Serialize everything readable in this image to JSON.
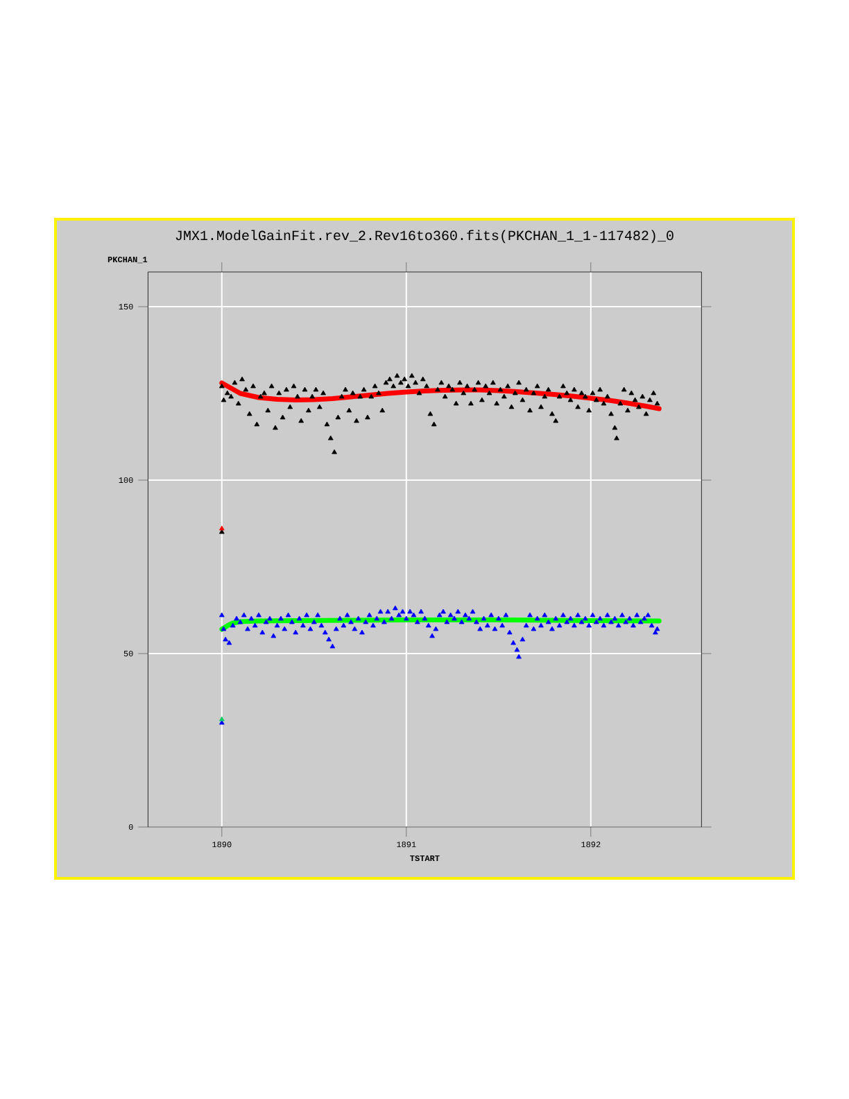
{
  "chart_data": {
    "type": "scatter",
    "title": "JMX1.ModelGainFit.rev_2.Rev16to360.fits(PKCHAN_1_1-117482)_0",
    "xlabel": "TSTART",
    "ylabel": "PKCHAN_1",
    "xlim": [
      1889.6,
      1892.6
    ],
    "ylim": [
      0,
      160
    ],
    "xticks": [
      1890,
      1891,
      1892
    ],
    "yticks": [
      0,
      50,
      100,
      150
    ],
    "grid": true,
    "marker": "triangle",
    "series": [
      {
        "color": "#000000",
        "x": [
          1890.0,
          1890.01,
          1890.03,
          1890.05,
          1890.07,
          1890.09,
          1890.11,
          1890.13,
          1890.15,
          1890.17,
          1890.19,
          1890.21,
          1890.23,
          1890.25,
          1890.27,
          1890.29,
          1890.31,
          1890.33,
          1890.35,
          1890.37,
          1890.39,
          1890.41,
          1890.43,
          1890.45,
          1890.47,
          1890.49,
          1890.51,
          1890.53,
          1890.55,
          1890.57,
          1890.59,
          1890.61,
          1890.63,
          1890.65,
          1890.67,
          1890.69,
          1890.71,
          1890.73,
          1890.75,
          1890.77,
          1890.79,
          1890.81,
          1890.83,
          1890.85,
          1890.87,
          1890.89,
          1890.91,
          1890.93,
          1890.95,
          1890.97,
          1890.99,
          1891.01,
          1891.03,
          1891.05,
          1891.07,
          1891.09,
          1891.11,
          1891.13,
          1891.15,
          1891.17,
          1891.19,
          1891.21,
          1891.23,
          1891.25,
          1891.27,
          1891.29,
          1891.31,
          1891.33,
          1891.35,
          1891.37,
          1891.39,
          1891.41,
          1891.43,
          1891.45,
          1891.47,
          1891.49,
          1891.51,
          1891.53,
          1891.55,
          1891.57,
          1891.59,
          1891.61,
          1891.63,
          1891.65,
          1891.67,
          1891.69,
          1891.71,
          1891.73,
          1891.75,
          1891.77,
          1891.79,
          1891.81,
          1891.83,
          1891.85,
          1891.87,
          1891.89,
          1891.91,
          1891.93,
          1891.95,
          1891.97,
          1891.99,
          1892.01,
          1892.03,
          1892.05,
          1892.07,
          1892.09,
          1892.11,
          1892.13,
          1892.14,
          1892.16,
          1892.18,
          1892.2,
          1892.22,
          1892.24,
          1892.26,
          1892.28,
          1892.3,
          1892.32,
          1892.34,
          1892.36,
          1890.0
        ],
        "values": [
          127,
          123,
          125,
          124,
          128,
          122,
          129,
          126,
          119,
          127,
          116,
          124,
          125,
          120,
          127,
          115,
          125,
          118,
          126,
          121,
          127,
          124,
          117,
          126,
          120,
          124,
          126,
          121,
          125,
          116,
          112,
          108,
          118,
          124,
          126,
          120,
          125,
          117,
          124,
          126,
          118,
          124,
          127,
          125,
          120,
          128,
          129,
          127,
          130,
          128,
          129,
          127,
          130,
          128,
          125,
          129,
          127,
          119,
          116,
          126,
          128,
          124,
          127,
          126,
          122,
          128,
          125,
          127,
          122,
          126,
          128,
          123,
          127,
          125,
          128,
          122,
          126,
          124,
          127,
          121,
          125,
          128,
          123,
          126,
          120,
          125,
          127,
          121,
          124,
          126,
          119,
          117,
          124,
          127,
          125,
          123,
          126,
          121,
          125,
          124,
          120,
          125,
          123,
          126,
          122,
          124,
          119,
          115,
          112,
          122,
          126,
          120,
          125,
          123,
          121,
          124,
          119,
          123,
          125,
          122,
          85
        ]
      },
      {
        "color": "#0000ff",
        "x": [
          1890.0,
          1890.01,
          1890.02,
          1890.04,
          1890.06,
          1890.08,
          1890.1,
          1890.12,
          1890.14,
          1890.16,
          1890.18,
          1890.2,
          1890.22,
          1890.24,
          1890.26,
          1890.28,
          1890.3,
          1890.32,
          1890.34,
          1890.36,
          1890.38,
          1890.4,
          1890.42,
          1890.44,
          1890.46,
          1890.48,
          1890.5,
          1890.52,
          1890.54,
          1890.56,
          1890.58,
          1890.6,
          1890.62,
          1890.64,
          1890.66,
          1890.68,
          1890.7,
          1890.72,
          1890.74,
          1890.76,
          1890.78,
          1890.8,
          1890.82,
          1890.84,
          1890.86,
          1890.88,
          1890.9,
          1890.92,
          1890.94,
          1890.96,
          1890.98,
          1891.0,
          1891.02,
          1891.04,
          1891.06,
          1891.08,
          1891.1,
          1891.12,
          1891.14,
          1891.16,
          1891.18,
          1891.2,
          1891.22,
          1891.24,
          1891.26,
          1891.28,
          1891.3,
          1891.32,
          1891.34,
          1891.36,
          1891.38,
          1891.4,
          1891.42,
          1891.44,
          1891.46,
          1891.48,
          1891.5,
          1891.52,
          1891.54,
          1891.56,
          1891.58,
          1891.6,
          1891.61,
          1891.63,
          1891.65,
          1891.67,
          1891.69,
          1891.71,
          1891.73,
          1891.75,
          1891.77,
          1891.79,
          1891.81,
          1891.83,
          1891.85,
          1891.87,
          1891.89,
          1891.91,
          1891.93,
          1891.95,
          1891.97,
          1891.99,
          1892.01,
          1892.03,
          1892.05,
          1892.07,
          1892.09,
          1892.11,
          1892.13,
          1892.15,
          1892.17,
          1892.19,
          1892.21,
          1892.23,
          1892.25,
          1892.27,
          1892.29,
          1892.31,
          1892.33,
          1892.35,
          1892.36,
          1890.0
        ],
        "values": [
          61,
          57,
          54,
          53,
          58,
          60,
          59,
          61,
          57,
          60,
          58,
          61,
          56,
          59,
          60,
          55,
          58,
          60,
          57,
          61,
          59,
          56,
          60,
          58,
          61,
          57,
          59,
          61,
          58,
          56,
          54,
          52,
          57,
          60,
          58,
          61,
          59,
          57,
          60,
          56,
          59,
          61,
          58,
          60,
          62,
          59,
          62,
          60,
          63,
          61,
          62,
          60,
          62,
          61,
          59,
          62,
          60,
          58,
          55,
          57,
          61,
          62,
          59,
          61,
          60,
          62,
          59,
          61,
          60,
          62,
          59,
          57,
          60,
          58,
          61,
          57,
          60,
          58,
          61,
          56,
          53,
          51,
          49,
          54,
          58,
          61,
          57,
          60,
          58,
          61,
          59,
          57,
          60,
          58,
          61,
          59,
          60,
          58,
          61,
          59,
          60,
          58,
          61,
          59,
          60,
          58,
          61,
          59,
          60,
          58,
          61,
          59,
          60,
          58,
          61,
          59,
          60,
          61,
          58,
          56,
          57,
          30
        ]
      },
      {
        "color": "#ff0000",
        "x": [
          1890.0
        ],
        "values": [
          86
        ]
      },
      {
        "color": "#00cc66",
        "x": [
          1890.0
        ],
        "values": [
          31
        ]
      },
      {
        "type": "line",
        "marker": "none",
        "color": "#ff0000",
        "x": [
          1890.0,
          1890.05,
          1890.1,
          1890.2,
          1890.3,
          1890.4,
          1890.5,
          1890.6,
          1890.7,
          1890.8,
          1890.9,
          1891.0,
          1891.1,
          1891.2,
          1891.3,
          1891.4,
          1891.5,
          1891.6,
          1891.7,
          1891.8,
          1891.9,
          1892.0,
          1892.1,
          1892.2,
          1892.3,
          1892.37
        ],
        "values": [
          128,
          126.5,
          125,
          123.8,
          123.3,
          123.1,
          123.2,
          123.5,
          124,
          124.5,
          125,
          125.4,
          125.7,
          125.9,
          126,
          126,
          125.8,
          125.5,
          125.1,
          124.7,
          124.2,
          123.6,
          123,
          122.2,
          121.3,
          120.6
        ]
      },
      {
        "type": "line",
        "marker": "none",
        "color": "#00ff00",
        "x": [
          1890.0,
          1890.03,
          1890.06,
          1890.1,
          1890.2,
          1890.4,
          1890.7,
          1891.0,
          1891.5,
          1892.0,
          1892.37
        ],
        "values": [
          57,
          58,
          58.8,
          59.2,
          59.4,
          59.5,
          59.6,
          59.7,
          59.7,
          59.5,
          59.4
        ]
      }
    ]
  }
}
